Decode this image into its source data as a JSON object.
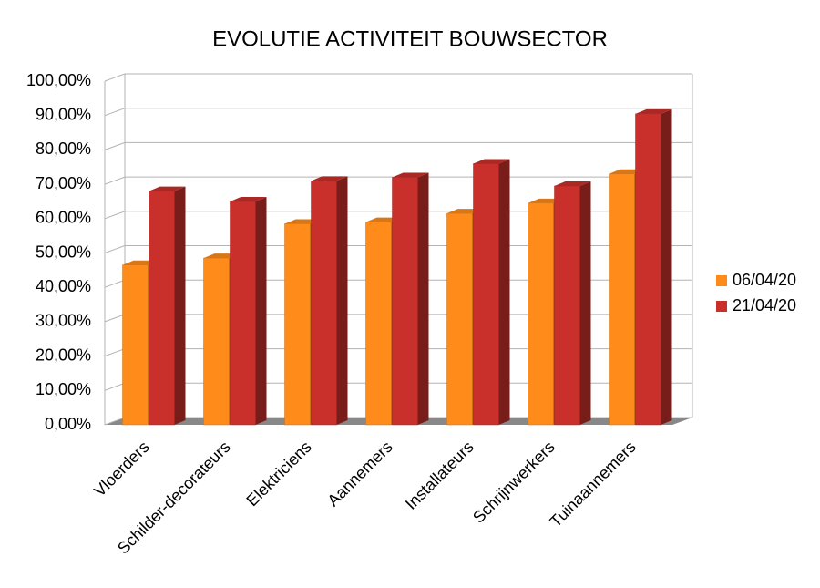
{
  "chart_data": {
    "type": "bar3d",
    "title": "EVOLUTIE ACTIVITEIT BOUWSECTOR",
    "categories": [
      "Vloerders",
      "Schilder-decorateurs",
      "Elektriciens",
      "Aannemers",
      "Installateurs",
      "Schrijnwerkers",
      "Tuinaannemers"
    ],
    "series": [
      {
        "name": "06/04/20",
        "color": "#ff8c1a",
        "values": [
          46.5,
          48.5,
          58.5,
          59,
          61.5,
          64.5,
          73
        ]
      },
      {
        "name": "21/04/20",
        "color": "#c9302c",
        "values": [
          68,
          65,
          71,
          72,
          76,
          69.5,
          90.5
        ]
      }
    ],
    "ylim": [
      0,
      100
    ],
    "yticks": [
      {
        "value": 0,
        "label": "0,00%"
      },
      {
        "value": 10,
        "label": "10,00%"
      },
      {
        "value": 20,
        "label": "20,00%"
      },
      {
        "value": 30,
        "label": "30,00%"
      },
      {
        "value": 40,
        "label": "40,00%"
      },
      {
        "value": 50,
        "label": "50,00%"
      },
      {
        "value": 60,
        "label": "60,00%"
      },
      {
        "value": 70,
        "label": "70,00%"
      },
      {
        "value": 80,
        "label": "80,00%"
      },
      {
        "value": 90,
        "label": "90,00%"
      },
      {
        "value": 100,
        "label": "100,00%"
      }
    ],
    "grid": true,
    "legend": "right"
  }
}
